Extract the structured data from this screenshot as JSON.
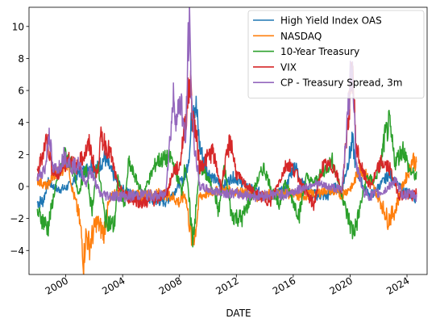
{
  "chart_data": {
    "type": "line",
    "title": "",
    "xlabel": "DATE",
    "ylabel": "",
    "xlim": [
      "1997-06-01",
      "2025-06-01"
    ],
    "ylim": [
      -5.5,
      11.2
    ],
    "grid": false,
    "legend_position": "top-right",
    "x_ticks": [
      "2000",
      "2004",
      "2008",
      "2012",
      "2016",
      "2020",
      "2024"
    ],
    "y_ticks": [
      -4,
      -2,
      0,
      2,
      4,
      6,
      8,
      10
    ],
    "colors": {
      "high_yield": "#1f77b4",
      "nasdaq": "#ff7f0e",
      "treasury": "#2ca02c",
      "vix": "#d62728",
      "cp_spread": "#9467bd"
    },
    "series": [
      {
        "name": "High Yield Index OAS",
        "color": "#1f77b4",
        "points": [
          [
            "1998-01-01",
            -1.0
          ],
          [
            "1998-06-01",
            -0.9
          ],
          [
            "1998-10-01",
            0.3
          ],
          [
            "1999-01-01",
            0.1
          ],
          [
            "1999-06-01",
            -0.2
          ],
          [
            "2000-01-01",
            -0.1
          ],
          [
            "2000-06-01",
            0.2
          ],
          [
            "2000-12-01",
            0.9
          ],
          [
            "2001-06-01",
            1.0
          ],
          [
            "2001-10-01",
            1.4
          ],
          [
            "2002-03-01",
            1.1
          ],
          [
            "2002-10-01",
            1.8
          ],
          [
            "2003-03-01",
            1.0
          ],
          [
            "2003-09-01",
            0.2
          ],
          [
            "2004-03-01",
            -0.3
          ],
          [
            "2005-01-01",
            -0.6
          ],
          [
            "2006-01-01",
            -0.8
          ],
          [
            "2007-01-01",
            -0.9
          ],
          [
            "2007-08-01",
            -0.4
          ],
          [
            "2008-01-01",
            0.2
          ],
          [
            "2008-06-01",
            0.6
          ],
          [
            "2008-10-01",
            2.5
          ],
          [
            "2008-12-01",
            5.7
          ],
          [
            "2009-03-01",
            5.0
          ],
          [
            "2009-06-01",
            2.5
          ],
          [
            "2009-12-01",
            1.0
          ],
          [
            "2010-06-01",
            0.5
          ],
          [
            "2011-01-01",
            0.0
          ],
          [
            "2011-10-01",
            0.6
          ],
          [
            "2012-06-01",
            0.2
          ],
          [
            "2013-06-01",
            -0.3
          ],
          [
            "2014-06-01",
            -0.6
          ],
          [
            "2015-06-01",
            -0.2
          ],
          [
            "2016-02-01",
            1.4
          ],
          [
            "2016-08-01",
            0.3
          ],
          [
            "2017-06-01",
            -0.5
          ],
          [
            "2018-06-01",
            -0.6
          ],
          [
            "2018-12-01",
            0.0
          ],
          [
            "2019-06-01",
            -0.3
          ],
          [
            "2020-03-01",
            2.8
          ],
          [
            "2020-06-01",
            1.2
          ],
          [
            "2020-12-01",
            0.0
          ],
          [
            "2021-06-01",
            -0.6
          ],
          [
            "2022-06-01",
            0.4
          ],
          [
            "2022-10-01",
            0.8
          ],
          [
            "2023-06-01",
            0.0
          ],
          [
            "2024-06-01",
            -0.6
          ],
          [
            "2024-09-01",
            -0.7
          ]
        ]
      },
      {
        "name": "NASDAQ",
        "color": "#ff7f0e",
        "points": [
          [
            "1998-01-01",
            0.4
          ],
          [
            "1998-09-01",
            0.0
          ],
          [
            "1999-03-01",
            0.7
          ],
          [
            "1999-09-01",
            1.0
          ],
          [
            "2000-03-01",
            1.6
          ],
          [
            "2000-06-01",
            0.0
          ],
          [
            "2000-12-01",
            -1.8
          ],
          [
            "2001-03-01",
            -3.5
          ],
          [
            "2001-04-01",
            -4.8
          ],
          [
            "2001-06-01",
            -3.0
          ],
          [
            "2001-09-01",
            -3.7
          ],
          [
            "2002-03-01",
            -2.2
          ],
          [
            "2002-09-01",
            -2.9
          ],
          [
            "2003-01-01",
            -1.2
          ],
          [
            "2003-06-01",
            -0.4
          ],
          [
            "2004-06-01",
            -0.5
          ],
          [
            "2005-06-01",
            -0.6
          ],
          [
            "2006-06-01",
            -0.4
          ],
          [
            "2007-06-01",
            -0.6
          ],
          [
            "2008-01-01",
            -1.0
          ],
          [
            "2008-06-01",
            -0.5
          ],
          [
            "2008-11-01",
            -3.2
          ],
          [
            "2009-02-01",
            -3.0
          ],
          [
            "2009-06-01",
            -0.6
          ],
          [
            "2010-06-01",
            -0.3
          ],
          [
            "2011-06-01",
            -0.2
          ],
          [
            "2012-06-01",
            -0.4
          ],
          [
            "2013-06-01",
            -0.6
          ],
          [
            "2014-06-01",
            -0.5
          ],
          [
            "2015-06-01",
            -0.4
          ],
          [
            "2016-06-01",
            -0.6
          ],
          [
            "2017-06-01",
            -0.5
          ],
          [
            "2018-06-01",
            -0.2
          ],
          [
            "2019-06-01",
            -0.5
          ],
          [
            "2020-03-01",
            0.0
          ],
          [
            "2020-09-01",
            1.2
          ],
          [
            "2021-06-01",
            0.4
          ],
          [
            "2022-03-01",
            -1.0
          ],
          [
            "2022-09-01",
            -2.1
          ],
          [
            "2023-03-01",
            -1.5
          ],
          [
            "2023-09-01",
            0.0
          ],
          [
            "2024-03-01",
            1.0
          ],
          [
            "2024-06-01",
            1.8
          ],
          [
            "2024-09-01",
            1.3
          ]
        ]
      },
      {
        "name": "10-Year Treasury",
        "color": "#2ca02c",
        "points": [
          [
            "1998-01-01",
            -1.6
          ],
          [
            "1998-10-01",
            -2.6
          ],
          [
            "1999-03-01",
            -0.5
          ],
          [
            "1999-09-01",
            1.2
          ],
          [
            "2000-01-01",
            2.0
          ],
          [
            "2000-06-01",
            1.3
          ],
          [
            "2000-12-01",
            -0.4
          ],
          [
            "2001-06-01",
            1.2
          ],
          [
            "2001-11-01",
            -1.5
          ],
          [
            "2002-04-01",
            1.6
          ],
          [
            "2002-10-01",
            -2.0
          ],
          [
            "2003-06-01",
            -2.5
          ],
          [
            "2003-09-01",
            0.5
          ],
          [
            "2004-03-01",
            -1.2
          ],
          [
            "2004-06-01",
            1.5
          ],
          [
            "2005-06-01",
            -0.5
          ],
          [
            "2006-06-01",
            1.6
          ],
          [
            "2007-06-01",
            1.8
          ],
          [
            "2008-03-01",
            -0.3
          ],
          [
            "2008-06-01",
            1.5
          ],
          [
            "2008-12-01",
            -3.2
          ],
          [
            "2009-03-01",
            -1.5
          ],
          [
            "2009-06-01",
            1.4
          ],
          [
            "2010-06-01",
            -0.2
          ],
          [
            "2010-10-01",
            -1.6
          ],
          [
            "2011-03-01",
            1.2
          ],
          [
            "2011-09-01",
            -1.8
          ],
          [
            "2012-06-01",
            -2.0
          ],
          [
            "2013-06-01",
            0.2
          ],
          [
            "2013-12-01",
            1.2
          ],
          [
            "2014-06-01",
            0.0
          ],
          [
            "2015-01-01",
            -1.2
          ],
          [
            "2015-06-01",
            0.3
          ],
          [
            "2016-06-01",
            -1.8
          ],
          [
            "2016-12-01",
            0.6
          ],
          [
            "2017-06-01",
            0.2
          ],
          [
            "2018-10-01",
            1.6
          ],
          [
            "2019-06-01",
            -0.4
          ],
          [
            "2019-09-01",
            -1.4
          ],
          [
            "2020-03-01",
            -2.8
          ],
          [
            "2020-06-01",
            -2.5
          ],
          [
            "2021-03-01",
            0.6
          ],
          [
            "2021-09-01",
            0.3
          ],
          [
            "2022-03-01",
            1.5
          ],
          [
            "2022-06-01",
            3.0
          ],
          [
            "2022-10-01",
            3.9
          ],
          [
            "2023-03-01",
            1.5
          ],
          [
            "2023-10-01",
            2.4
          ],
          [
            "2024-03-01",
            1.0
          ],
          [
            "2024-09-01",
            0.6
          ]
        ]
      },
      {
        "name": "VIX",
        "color": "#d62728",
        "points": [
          [
            "1998-01-01",
            0.8
          ],
          [
            "1998-09-01",
            3.1
          ],
          [
            "1999-01-01",
            1.2
          ],
          [
            "1999-06-01",
            0.6
          ],
          [
            "2000-04-01",
            1.8
          ],
          [
            "2000-10-01",
            1.2
          ],
          [
            "2001-03-01",
            1.8
          ],
          [
            "2001-09-01",
            2.6
          ],
          [
            "2002-03-01",
            0.6
          ],
          [
            "2002-07-01",
            3.1
          ],
          [
            "2002-10-01",
            2.7
          ],
          [
            "2003-03-01",
            2.0
          ],
          [
            "2003-09-01",
            0.0
          ],
          [
            "2004-06-01",
            -0.7
          ],
          [
            "2005-06-01",
            -1.0
          ],
          [
            "2006-06-01",
            -0.8
          ],
          [
            "2007-03-01",
            -0.3
          ],
          [
            "2007-08-01",
            1.0
          ],
          [
            "2008-01-01",
            1.2
          ],
          [
            "2008-10-01",
            6.6
          ],
          [
            "2008-12-01",
            4.5
          ],
          [
            "2009-03-01",
            3.3
          ],
          [
            "2009-06-01",
            1.2
          ],
          [
            "2010-05-01",
            2.2
          ],
          [
            "2010-12-01",
            0.0
          ],
          [
            "2011-08-01",
            3.0
          ],
          [
            "2012-01-01",
            0.8
          ],
          [
            "2012-06-01",
            0.3
          ],
          [
            "2013-06-01",
            -0.5
          ],
          [
            "2014-06-01",
            -0.9
          ],
          [
            "2015-08-01",
            1.5
          ],
          [
            "2016-02-01",
            1.0
          ],
          [
            "2017-06-01",
            -1.2
          ],
          [
            "2018-02-01",
            1.3
          ],
          [
            "2018-12-01",
            1.2
          ],
          [
            "2019-06-01",
            -0.4
          ],
          [
            "2020-03-01",
            7.4
          ],
          [
            "2020-06-01",
            2.5
          ],
          [
            "2020-12-01",
            0.8
          ],
          [
            "2021-06-01",
            0.0
          ],
          [
            "2022-03-01",
            1.5
          ],
          [
            "2022-10-01",
            1.2
          ],
          [
            "2023-06-01",
            -0.5
          ],
          [
            "2024-06-01",
            -0.6
          ],
          [
            "2024-09-01",
            -0.4
          ]
        ]
      },
      {
        "name": "CP - Treasury Spread, 3m",
        "color": "#9467bd",
        "points": [
          [
            "1998-01-01",
            0.5
          ],
          [
            "1998-08-01",
            1.2
          ],
          [
            "1998-11-01",
            3.6
          ],
          [
            "1999-02-01",
            1.0
          ],
          [
            "1999-08-01",
            1.3
          ],
          [
            "1999-12-01",
            2.0
          ],
          [
            "2000-06-01",
            1.2
          ],
          [
            "2000-12-01",
            1.4
          ],
          [
            "2001-06-01",
            0.2
          ],
          [
            "2001-10-01",
            1.0
          ],
          [
            "2002-06-01",
            -0.5
          ],
          [
            "2003-06-01",
            -0.6
          ],
          [
            "2004-06-01",
            -0.6
          ],
          [
            "2005-06-01",
            -0.5
          ],
          [
            "2006-06-01",
            -0.6
          ],
          [
            "2007-01-01",
            -0.5
          ],
          [
            "2007-08-01",
            5.6
          ],
          [
            "2007-11-01",
            4.0
          ],
          [
            "2008-01-01",
            5.5
          ],
          [
            "2008-03-01",
            5.0
          ],
          [
            "2008-06-01",
            2.5
          ],
          [
            "2008-09-01",
            10.4
          ],
          [
            "2008-11-01",
            6.0
          ],
          [
            "2009-01-01",
            3.0
          ],
          [
            "2009-06-01",
            0.0
          ],
          [
            "2010-06-01",
            -0.3
          ],
          [
            "2011-06-01",
            -0.4
          ],
          [
            "2012-06-01",
            -0.5
          ],
          [
            "2013-06-01",
            -0.6
          ],
          [
            "2014-06-01",
            -0.5
          ],
          [
            "2015-06-01",
            -0.5
          ],
          [
            "2016-06-01",
            -0.2
          ],
          [
            "2017-06-01",
            0.2
          ],
          [
            "2018-06-01",
            0.0
          ],
          [
            "2019-06-01",
            -0.2
          ],
          [
            "2020-03-01",
            8.1
          ],
          [
            "2020-06-01",
            1.5
          ],
          [
            "2020-12-01",
            -0.3
          ],
          [
            "2021-06-01",
            -0.6
          ],
          [
            "2022-06-01",
            -0.3
          ],
          [
            "2023-03-01",
            0.4
          ],
          [
            "2023-09-01",
            -0.5
          ],
          [
            "2024-06-01",
            -0.5
          ],
          [
            "2024-09-01",
            -0.6
          ]
        ]
      }
    ]
  }
}
